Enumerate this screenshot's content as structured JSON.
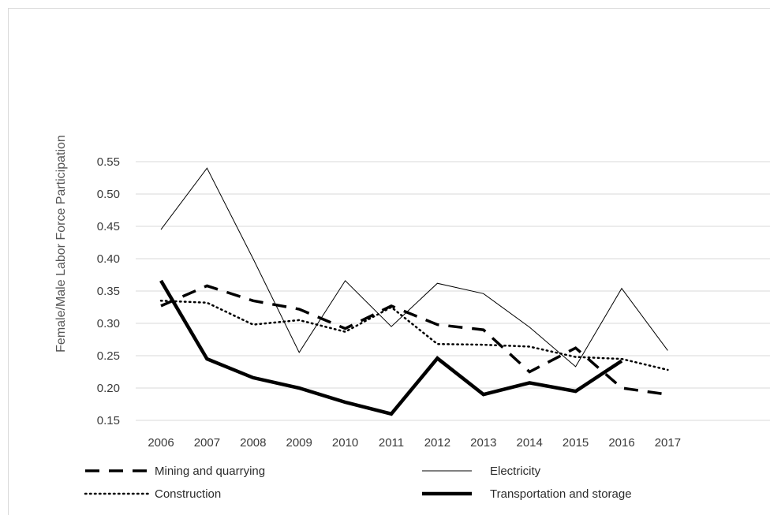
{
  "chart_data": {
    "type": "line",
    "title": "",
    "xlabel": "",
    "ylabel": "Female/Male Labor Force Participation",
    "ylim": [
      0.15,
      0.55
    ],
    "y_ticks": [
      "0.15",
      "0.20",
      "0.25",
      "0.30",
      "0.35",
      "0.40",
      "0.45",
      "0.50",
      "0.55"
    ],
    "grid": "horizontal",
    "legend_position": "bottom",
    "categories": [
      "2006",
      "2007",
      "2008",
      "2009",
      "2010",
      "2011",
      "2012",
      "2013",
      "2014",
      "2015",
      "2016",
      "2017"
    ],
    "series": [
      {
        "name": "Mining and quarrying",
        "style": "dashed",
        "color": "#000000",
        "values": [
          0.327,
          0.358,
          0.335,
          0.322,
          0.292,
          0.327,
          0.298,
          0.29,
          0.225,
          0.262,
          0.2,
          0.19
        ]
      },
      {
        "name": "Electricity",
        "style": "thin",
        "color": "#000000",
        "values": [
          0.445,
          0.54,
          0.4,
          0.255,
          0.366,
          0.295,
          0.362,
          0.346,
          0.294,
          0.233,
          0.354,
          0.258
        ]
      },
      {
        "name": "Construction",
        "style": "dotted",
        "color": "#000000",
        "values": [
          0.335,
          0.332,
          0.298,
          0.305,
          0.287,
          0.325,
          0.268,
          0.267,
          0.264,
          0.248,
          0.245,
          0.228
        ]
      },
      {
        "name": "Transportation and storage",
        "style": "thick",
        "color": "#000000",
        "values": [
          0.366,
          0.245,
          0.216,
          0.2,
          0.178,
          0.16,
          0.246,
          0.19,
          0.208,
          0.195,
          0.242,
          null
        ]
      }
    ]
  }
}
